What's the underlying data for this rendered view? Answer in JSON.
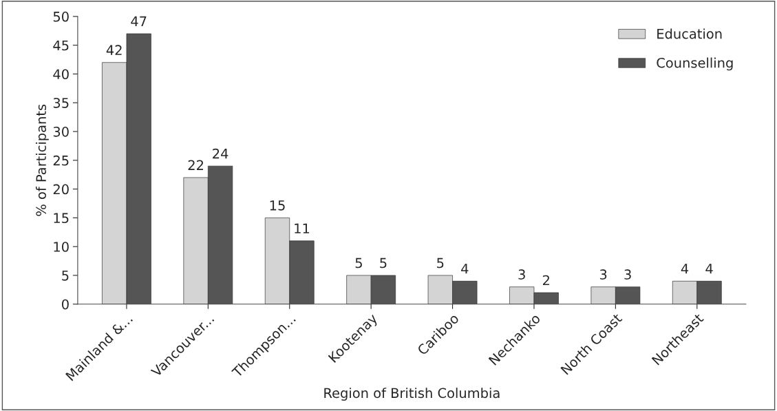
{
  "chart_data": {
    "type": "bar",
    "xlabel": "Region of British Columbia",
    "ylabel": "% of Participants",
    "categories": [
      "Mainland &...",
      "Vancouver...",
      "Thompson...",
      "Kootenay",
      "Cariboo",
      "Nechanko",
      "North Coast",
      "Northeast"
    ],
    "series": [
      {
        "name": "Education",
        "color": "#d4d4d4",
        "values": [
          42,
          22,
          15,
          5,
          5,
          3,
          3,
          4
        ]
      },
      {
        "name": "Counselling",
        "color": "#555555",
        "values": [
          47,
          24,
          11,
          5,
          4,
          2,
          3,
          4
        ]
      }
    ],
    "ylim": [
      0,
      50
    ],
    "yticks": [
      0,
      5,
      10,
      15,
      20,
      25,
      30,
      35,
      40,
      45,
      50
    ],
    "data_labels": true,
    "legend": "top right",
    "grid": false
  }
}
